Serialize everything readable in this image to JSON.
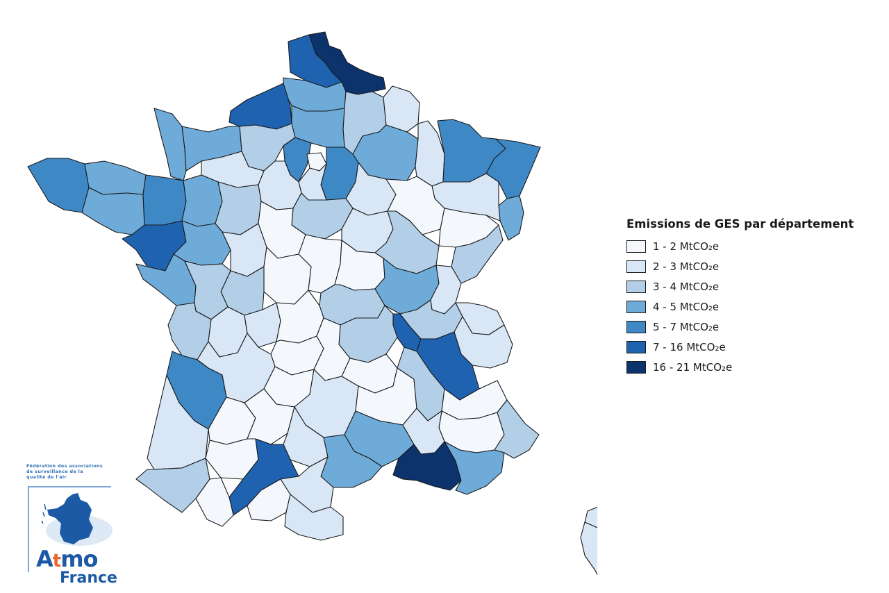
{
  "legend": {
    "title": "Emissions de GES par département",
    "classes": [
      {
        "label": "1 - 2 MtCO₂e",
        "color": "#f4f8fd"
      },
      {
        "label": "2 - 3 MtCO₂e",
        "color": "#d8e6f5"
      },
      {
        "label": "3 - 4 MtCO₂e",
        "color": "#b3cfe8"
      },
      {
        "label": "4 - 5 MtCO₂e",
        "color": "#6fabd8"
      },
      {
        "label": "5 - 7 MtCO₂e",
        "color": "#3f88c6"
      },
      {
        "label": "7 - 16 MtCO₂e",
        "color": "#1f63b0"
      },
      {
        "label": "16 - 21 MtCO₂e",
        "color": "#0c336c"
      }
    ]
  },
  "logo": {
    "tagline_1": "Fédération des associations",
    "tagline_2": "de surveillance de la",
    "tagline_3": "qualité de l'air",
    "word_a": "A",
    "word_t": "t",
    "word_mo": "mo",
    "word_france": "France"
  },
  "icons": {
    "logo_map": "france-map-icon"
  }
}
